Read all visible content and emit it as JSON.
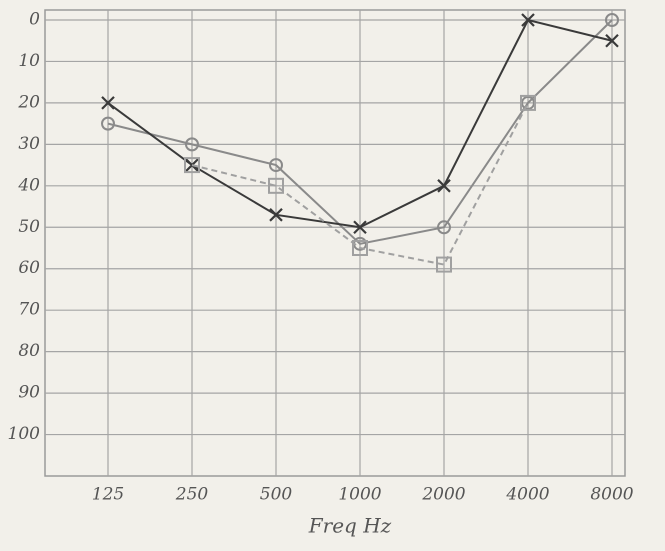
{
  "chart_data": {
    "type": "line",
    "xlabel": "Freq Hz",
    "categories": [
      "125",
      "250",
      "500",
      "1000",
      "2000",
      "4000",
      "8000"
    ],
    "series": [
      {
        "color": "#8a8a8a",
        "marker": "o",
        "dashed": false,
        "values": [
          25,
          30,
          35,
          54,
          50,
          20,
          0
        ]
      },
      {
        "color": "#3a3a3a",
        "marker": "x",
        "dashed": false,
        "values": [
          20,
          35,
          47,
          50,
          40,
          0,
          5
        ]
      },
      {
        "color": "#a0a0a0",
        "marker": "s",
        "dashed": true,
        "values": [
          null,
          35,
          40,
          55,
          59,
          20,
          null
        ]
      }
    ],
    "ylim": [
      0,
      110
    ],
    "y_inverted": true,
    "yticks": [
      0,
      10,
      20,
      30,
      40,
      50,
      60,
      70,
      80,
      90,
      100
    ],
    "grid": true
  }
}
